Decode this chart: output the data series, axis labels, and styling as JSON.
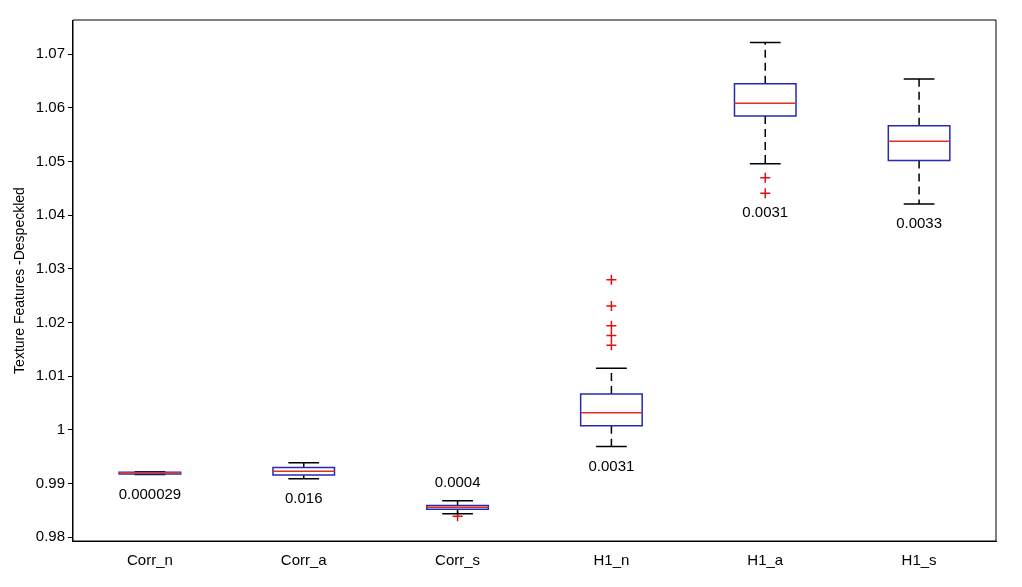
{
  "chart_data": {
    "type": "box",
    "ylabel": "Texture Features -Despeckled",
    "categories": [
      "Corr_n",
      "Corr_a",
      "Corr_s",
      "H1_n",
      "H1_a",
      "H1_s"
    ],
    "series": [
      {
        "color": "#2828b4",
        "boxes": [
          {
            "low": 0.9917,
            "q1": 0.9918,
            "median": 0.992,
            "q3": 0.9921,
            "high": 0.9922
          },
          {
            "low": 0.9909,
            "q1": 0.9916,
            "median": 0.9923,
            "q3": 0.993,
            "high": 0.9939
          },
          {
            "low": 0.9844,
            "q1": 0.9852,
            "median": 0.9856,
            "q3": 0.9859,
            "high": 0.9868,
            "outliers": [
              0.9839
            ]
          },
          {
            "low": 0.9969,
            "q1": 1.0008,
            "median": 1.0032,
            "q3": 1.0067,
            "high": 1.0115,
            "outliers": [
              1.028,
              1.0231,
              1.0194,
              1.0176,
              1.0158
            ]
          },
          {
            "low": 1.0496,
            "q1": 1.0585,
            "median": 1.0609,
            "q3": 1.0645,
            "high": 1.0722,
            "outliers": [
              1.047,
              1.0441
            ]
          },
          {
            "low": 1.0421,
            "q1": 1.0502,
            "median": 1.0538,
            "q3": 1.0567,
            "high": 1.0654
          }
        ]
      }
    ],
    "ylim": [
      0.9793,
      1.0764
    ],
    "yticks": [
      0.98,
      0.99,
      1,
      1.01,
      1.02,
      1.03,
      1.04,
      1.05,
      1.06,
      1.07
    ],
    "grid": false,
    "legend": false,
    "annotations": [
      "0.000029",
      "0.016",
      "0.0004",
      "0.0031",
      "0.0031",
      "0.0033"
    ]
  }
}
